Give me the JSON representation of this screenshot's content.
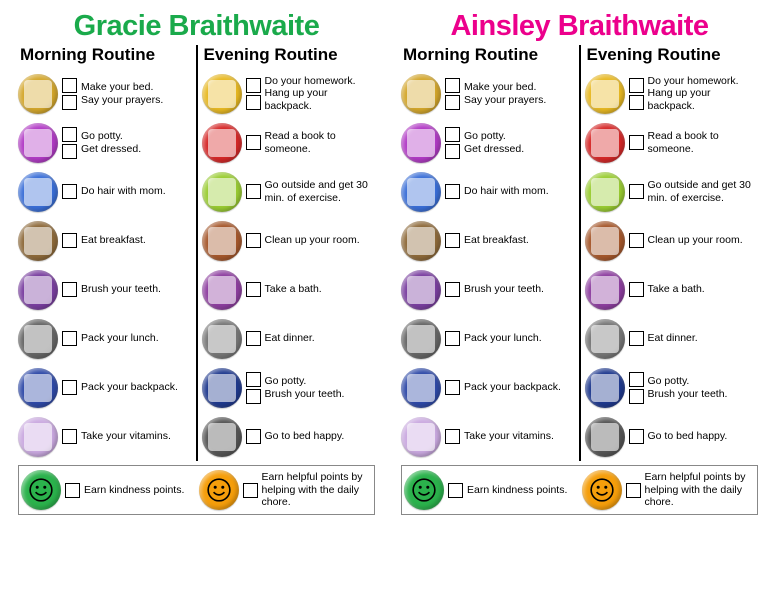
{
  "children": [
    {
      "name": "Gracie Braithwaite",
      "name_color": "#1aaa4b"
    },
    {
      "name": "Ainsley Braithwaite",
      "name_color": "#ec008c"
    }
  ],
  "headings": {
    "morning": "Morning Routine",
    "evening": "Evening Routine"
  },
  "morning": [
    {
      "icon_color": "#d4a72c",
      "labels": [
        "Make your bed.",
        "Say your prayers."
      ]
    },
    {
      "icon_color": "#b23bc6",
      "labels": [
        "Go potty.",
        "Get dressed."
      ]
    },
    {
      "icon_color": "#3a6fd8",
      "labels": [
        "Do hair with mom."
      ]
    },
    {
      "icon_color": "#8e6a3a",
      "labels": [
        "Eat breakfast."
      ]
    },
    {
      "icon_color": "#7a3fa0",
      "labels": [
        "Brush your teeth."
      ]
    },
    {
      "icon_color": "#666666",
      "labels": [
        "Pack your lunch."
      ]
    },
    {
      "icon_color": "#2f4aa8",
      "labels": [
        "Pack your backpack."
      ]
    },
    {
      "icon_color": "#caa9e0",
      "labels": [
        "Take your vitamins."
      ]
    }
  ],
  "evening": [
    {
      "icon_color": "#e8b923",
      "labels": [
        "Do your homework.",
        "Hang up your backpack."
      ]
    },
    {
      "icon_color": "#d62828",
      "labels": [
        "Read a book to someone."
      ]
    },
    {
      "icon_color": "#9acd32",
      "labels": [
        "Go outside and get 30 min. of exercise."
      ]
    },
    {
      "icon_color": "#a6582c",
      "labels": [
        "Clean up your room."
      ]
    },
    {
      "icon_color": "#8e3fa0",
      "labels": [
        "Take a bath."
      ]
    },
    {
      "icon_color": "#777777",
      "labels": [
        "Eat dinner."
      ]
    },
    {
      "icon_color": "#203a8f",
      "labels": [
        "Go potty.",
        "Brush your teeth."
      ]
    },
    {
      "icon_color": "#555555",
      "labels": [
        "Go to bed happy."
      ]
    }
  ],
  "bonus": {
    "left": {
      "face_color": "#2bb24c",
      "label": "Earn kindness points."
    },
    "right": {
      "face_color": "#f59e0b",
      "label": "Earn helpful points by helping with the daily chore."
    }
  }
}
